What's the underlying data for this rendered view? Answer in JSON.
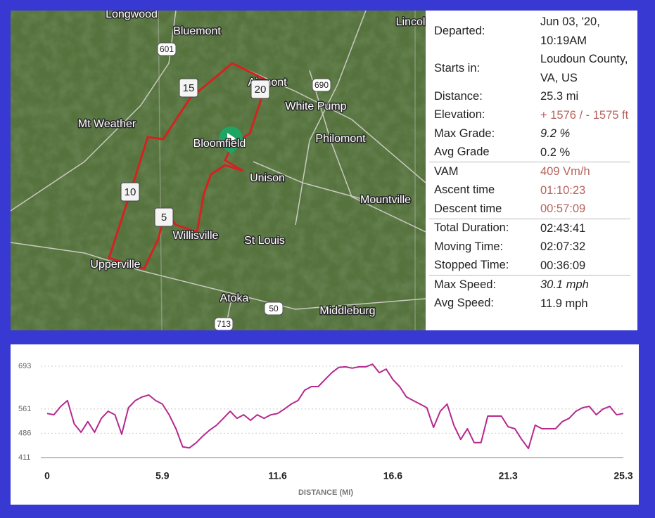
{
  "map": {
    "places": [
      "Longwood",
      "Bluemont",
      "Lincoln",
      "Airmont",
      "White Pump",
      "Mt Weather",
      "Bloomfield",
      "Philomont",
      "Unison",
      "Mountville",
      "Willisville",
      "St Louis",
      "Upperville",
      "Atoka",
      "Middleburg"
    ],
    "route_shields": [
      "601",
      "690",
      "50",
      "713"
    ],
    "mile_markers": [
      "5",
      "10",
      "15",
      "20"
    ]
  },
  "stats": {
    "groups": [
      [
        {
          "label": "Departed:",
          "value": "Jun 03, '20, 10:19AM"
        },
        {
          "label": "Starts in:",
          "value": "Loudoun County, VA, US"
        },
        {
          "label": "Distance:",
          "value": "25.3 mi"
        },
        {
          "label": "Elevation:",
          "value": "+ 1576 / - 1575 ft",
          "color": "#b5625c"
        },
        {
          "label": "Max Grade:",
          "value": "9.2 %",
          "italic": true
        },
        {
          "label": "Avg Grade",
          "value": "0.2 %"
        }
      ],
      [
        {
          "label": "VAM",
          "value": "409 Vm/h",
          "color": "#b5625c"
        },
        {
          "label": "Ascent time",
          "value": "01:10:23",
          "color": "#b5625c"
        },
        {
          "label": "Descent time",
          "value": "00:57:09",
          "color": "#b5625c"
        }
      ],
      [
        {
          "label": "Total Duration:",
          "value": "02:43:41"
        },
        {
          "label": "Moving Time:",
          "value": "02:07:32"
        },
        {
          "label": "Stopped Time:",
          "value": "00:36:09"
        }
      ],
      [
        {
          "label": "Max Speed:",
          "value": "30.1 mph",
          "italic": true
        },
        {
          "label": "Avg Speed:",
          "value": "11.9 mph"
        }
      ]
    ]
  },
  "chart_data": {
    "type": "line",
    "x_label": "DISTANCE (MI)",
    "xticks": [
      0,
      5.9,
      11.6,
      16.6,
      21.3,
      25.3
    ],
    "ylim": [
      411,
      693
    ],
    "yticks": [
      411,
      486,
      561,
      693
    ],
    "grid": true,
    "series": [
      {
        "color": "#b5288e",
        "values": [
          547,
          543,
          569,
          587,
          515,
          489,
          522,
          489,
          532,
          554,
          543,
          483,
          565,
          587,
          598,
          604,
          587,
          576,
          543,
          500,
          444,
          441,
          457,
          478,
          496,
          511,
          532,
          554,
          532,
          543,
          526,
          543,
          532,
          543,
          547,
          561,
          576,
          587,
          619,
          630,
          630,
          652,
          673,
          689,
          691,
          687,
          691,
          691,
          699,
          673,
          684,
          652,
          630,
          598,
          587,
          576,
          565,
          504,
          554,
          576,
          511,
          467,
          500,
          457,
          457,
          539,
          539,
          539,
          506,
          500,
          467,
          439,
          511,
          500,
          500,
          500,
          522,
          532,
          554,
          565,
          569,
          543,
          561,
          569,
          543,
          547
        ]
      }
    ]
  }
}
